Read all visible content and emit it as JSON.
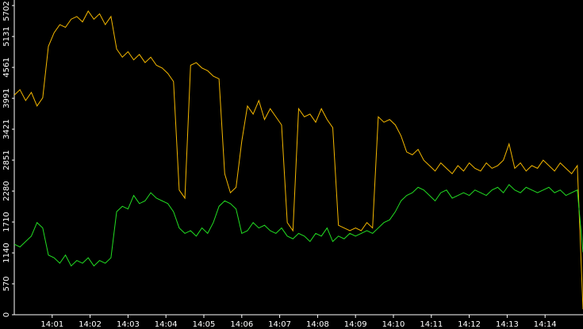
{
  "chart_data": {
    "type": "line",
    "x": [
      0,
      0.15,
      0.3,
      0.45,
      0.6,
      0.75,
      0.9,
      1.05,
      1.2,
      1.35,
      1.5,
      1.65,
      1.8,
      1.95,
      2.1,
      2.25,
      2.4,
      2.55,
      2.7,
      2.85,
      3,
      3.15,
      3.3,
      3.45,
      3.6,
      3.75,
      3.9,
      4.05,
      4.2,
      4.35,
      4.5,
      4.65,
      4.8,
      4.95,
      5.1,
      5.25,
      5.4,
      5.55,
      5.7,
      5.85,
      6,
      6.15,
      6.3,
      6.45,
      6.6,
      6.75,
      6.9,
      7.05,
      7.2,
      7.35,
      7.5,
      7.65,
      7.8,
      7.95,
      8.1,
      8.25,
      8.4,
      8.55,
      8.7,
      8.85,
      9,
      9.15,
      9.3,
      9.45,
      9.6,
      9.75,
      9.9,
      10.05,
      10.2,
      10.35,
      10.5,
      10.65,
      10.8,
      10.95,
      11.1,
      11.25,
      11.4,
      11.55,
      11.7,
      11.85,
      12,
      12.15,
      12.3,
      12.45,
      12.6,
      12.75,
      12.9,
      13.05,
      13.2,
      13.35,
      13.5,
      13.65,
      13.8,
      13.95,
      14.1,
      14.25,
      14.4,
      14.55,
      14.7,
      14.85,
      15
    ],
    "series": [
      {
        "color": "#f5b800",
        "values": [
          4050,
          4150,
          3950,
          4100,
          3850,
          4000,
          4950,
          5200,
          5350,
          5300,
          5450,
          5500,
          5400,
          5600,
          5450,
          5550,
          5350,
          5500,
          4900,
          4750,
          4850,
          4700,
          4800,
          4650,
          4750,
          4600,
          4550,
          4450,
          4300,
          2300,
          2150,
          4600,
          4650,
          4550,
          4500,
          4400,
          4350,
          2600,
          2250,
          2350,
          3200,
          3850,
          3700,
          3950,
          3600,
          3800,
          3650,
          3500,
          1700,
          1550,
          3800,
          3650,
          3700,
          3550,
          3800,
          3600,
          3450,
          1650,
          1600,
          1550,
          1600,
          1550,
          1700,
          1600,
          3650,
          3550,
          3600,
          3500,
          3300,
          3000,
          2950,
          3050,
          2850,
          2750,
          2650,
          2800,
          2700,
          2600,
          2750,
          2650,
          2800,
          2700,
          2650,
          2800,
          2700,
          2750,
          2850,
          3150,
          2700,
          2800,
          2650,
          2750,
          2700,
          2850,
          2750,
          2650,
          2800,
          2700,
          2600,
          2750,
          100
        ]
      },
      {
        "color": "#22dd22",
        "values": [
          1300,
          1250,
          1350,
          1450,
          1700,
          1600,
          1100,
          1050,
          950,
          1100,
          900,
          1000,
          950,
          1050,
          900,
          1000,
          950,
          1050,
          1900,
          2000,
          1950,
          2200,
          2050,
          2100,
          2250,
          2150,
          2100,
          2050,
          1900,
          1600,
          1500,
          1550,
          1450,
          1600,
          1500,
          1700,
          2000,
          2100,
          2050,
          1950,
          1500,
          1550,
          1700,
          1600,
          1650,
          1550,
          1500,
          1600,
          1450,
          1400,
          1500,
          1450,
          1350,
          1500,
          1450,
          1600,
          1350,
          1450,
          1400,
          1500,
          1450,
          1500,
          1550,
          1500,
          1600,
          1700,
          1750,
          1900,
          2100,
          2200,
          2250,
          2350,
          2300,
          2200,
          2100,
          2250,
          2300,
          2150,
          2200,
          2250,
          2200,
          2300,
          2250,
          2200,
          2300,
          2350,
          2250,
          2400,
          2300,
          2250,
          2350,
          2300,
          2250,
          2300,
          2350,
          2250,
          2300,
          2200,
          2250,
          2300,
          1150
        ]
      }
    ],
    "xlim": [
      0,
      15
    ],
    "xticks": [
      {
        "value": 1,
        "label": "14:01"
      },
      {
        "value": 2,
        "label": "14:02"
      },
      {
        "value": 3,
        "label": "14:03"
      },
      {
        "value": 4,
        "label": "14:04"
      },
      {
        "value": 5,
        "label": "14:05"
      },
      {
        "value": 6,
        "label": "14:06"
      },
      {
        "value": 7,
        "label": "14:07"
      },
      {
        "value": 8,
        "label": "14:08"
      },
      {
        "value": 9,
        "label": "14:09"
      },
      {
        "value": 10,
        "label": "14:10"
      },
      {
        "value": 11,
        "label": "14:11"
      },
      {
        "value": 12,
        "label": "14:12"
      },
      {
        "value": 13,
        "label": "14:13"
      },
      {
        "value": 14,
        "label": "14:14"
      }
    ],
    "ylim": [
      0,
      5702
    ],
    "yticks": [
      0,
      570,
      1140,
      1710,
      2280,
      2851,
      3421,
      3991,
      4561,
      5131,
      5702
    ]
  }
}
